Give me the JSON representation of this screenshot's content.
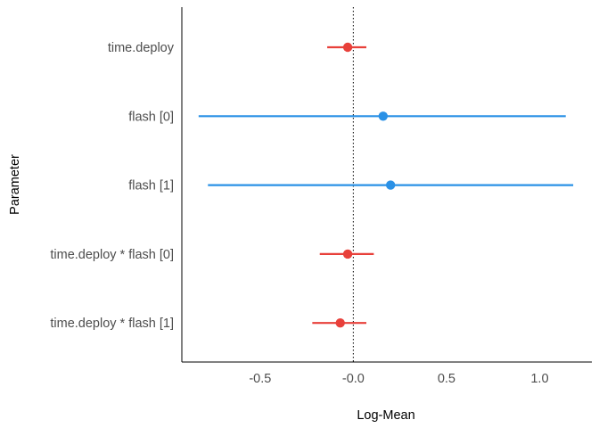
{
  "chart_data": {
    "type": "scatter",
    "subtype": "forest-plot",
    "title": "",
    "xlabel": "Log-Mean",
    "ylabel": "Parameter",
    "xlim": [
      -0.92,
      1.28
    ],
    "xticks": [
      -0.5,
      0.0,
      0.5,
      1.0
    ],
    "xtick_labels": [
      "-0.5",
      "-0.0",
      "0.5",
      "1.0"
    ],
    "reference_line": 0.0,
    "grid": false,
    "legend": "none",
    "colors": {
      "negative": "#e8403a",
      "positive": "#2a91e6",
      "axis": "#000000",
      "tick_text": "#4d4d4d"
    },
    "parameters": [
      {
        "label": "time.deploy",
        "estimate": -0.03,
        "lower": -0.14,
        "upper": 0.07,
        "sign": "negative"
      },
      {
        "label": "flash [0]",
        "estimate": 0.16,
        "lower": -0.83,
        "upper": 1.14,
        "sign": "positive"
      },
      {
        "label": "flash [1]",
        "estimate": 0.2,
        "lower": -0.78,
        "upper": 1.18,
        "sign": "positive"
      },
      {
        "label": "time.deploy * flash [0]",
        "estimate": -0.03,
        "lower": -0.18,
        "upper": 0.11,
        "sign": "negative"
      },
      {
        "label": "time.deploy * flash [1]",
        "estimate": -0.07,
        "lower": -0.22,
        "upper": 0.07,
        "sign": "negative"
      }
    ]
  }
}
